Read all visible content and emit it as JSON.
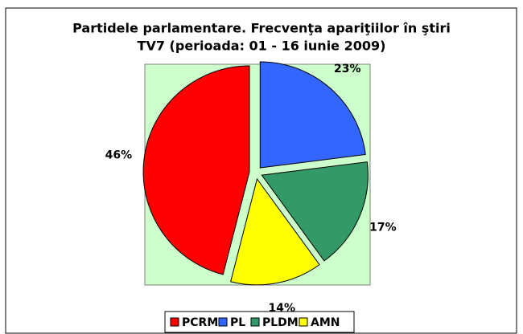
{
  "chart_data": {
    "type": "pie",
    "title": [
      "Partidele parlamentare. Frecvenţa apariţiilor în ştiri",
      "TV7 (perioada: 01 - 16 iunie 2009)"
    ],
    "categories": [
      "PCRM",
      "PL",
      "PLDM",
      "AMN"
    ],
    "values": [
      46,
      23,
      17,
      14
    ],
    "value_labels": [
      "46%",
      "23%",
      "17%",
      "14%"
    ],
    "colors": [
      "#ff0000",
      "#3366ff",
      "#339966",
      "#ffff00"
    ],
    "legend": "bottom"
  }
}
